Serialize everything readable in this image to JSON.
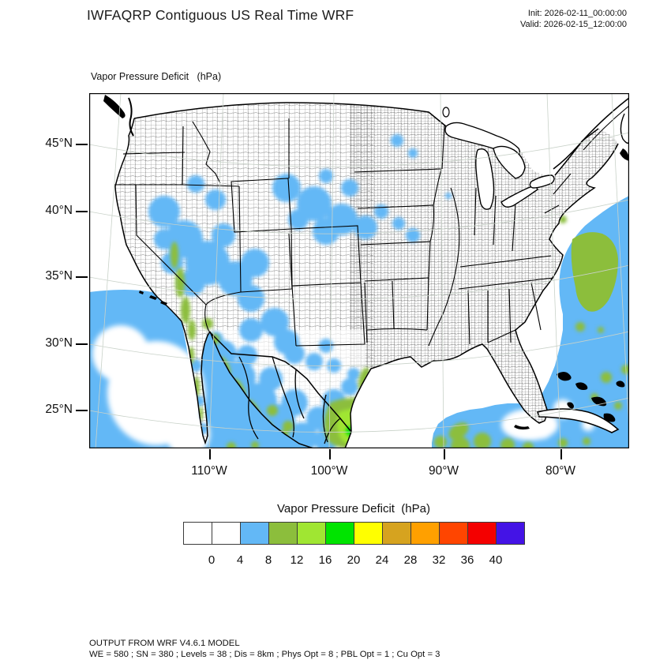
{
  "header": {
    "title": "IWFAQRP Contiguous US Real Time WRF",
    "init": "Init: 2026-02-11_00:00:00",
    "valid": "Valid: 2026-02-15_12:00:00"
  },
  "map_panel": {
    "field_title": "Vapor Pressure Deficit   (hPa)",
    "lat_tick_labels": [
      "45°N",
      "40°N",
      "35°N",
      "30°N",
      "25°N"
    ],
    "lon_tick_labels": [
      "110°W",
      "100°W",
      "90°W",
      "80°W"
    ]
  },
  "colorbar": {
    "title": "Vapor Pressure Deficit  (hPa)",
    "units": "hPa",
    "tick_labels": [
      "0",
      "4",
      "8",
      "12",
      "16",
      "20",
      "24",
      "28",
      "32",
      "36",
      "40"
    ],
    "cell_colors": [
      "#FFFFFF",
      "#FFFFFF",
      "#63B8F6",
      "#8CBE3C",
      "#A0E632",
      "#00E400",
      "#FFFF00",
      "#D6A31F",
      "#FFA000",
      "#FF4500",
      "#F40000",
      "#4413E6"
    ]
  },
  "footer": {
    "line1": "OUTPUT FROM WRF V4.6.1 MODEL",
    "line2": "WE = 580 ; SN = 380 ; Levels = 38 ; Dis = 8km ; Phys Opt = 8 ; PBL Opt = 1 ; Cu Opt = 3"
  },
  "palette": {
    "shade_4_8": "#63B8F6",
    "shade_8_12": "#8CBE3C",
    "shade_12_16": "#A0E632",
    "shade_16_20": "#00E400"
  }
}
